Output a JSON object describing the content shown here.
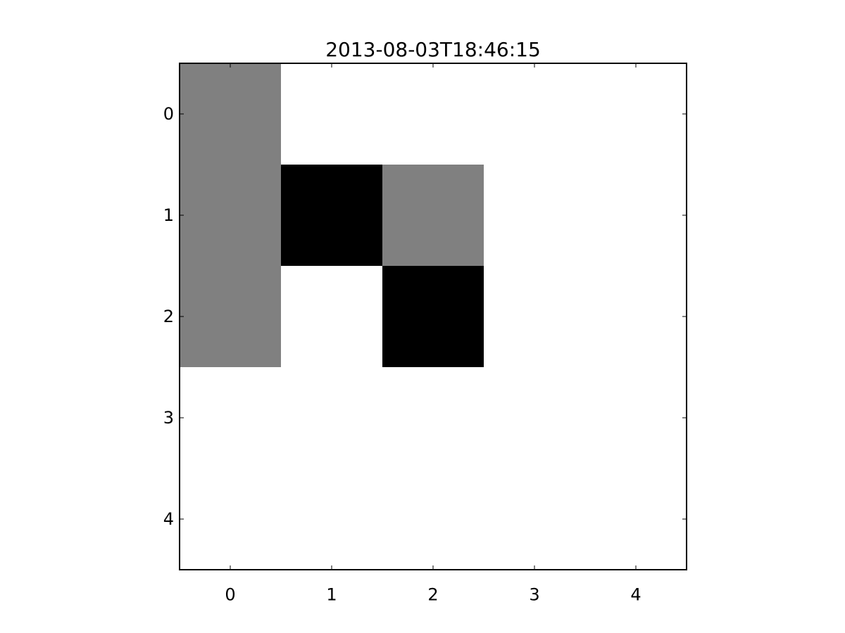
{
  "chart_data": {
    "type": "heatmap",
    "title": "2013-08-03T18:46:15",
    "xlabel": "",
    "ylabel": "",
    "x_ticks": [
      "0",
      "1",
      "2",
      "3",
      "4"
    ],
    "y_ticks": [
      "0",
      "1",
      "2",
      "3",
      "4"
    ],
    "xlim": [
      -0.5,
      4.5
    ],
    "ylim": [
      4.5,
      -0.5
    ],
    "y_axis_inverted": true,
    "colormap": "gray_r",
    "value_range": [
      0,
      1
    ],
    "grid": false,
    "values": [
      [
        0.5,
        0,
        0,
        0,
        0
      ],
      [
        0.5,
        1,
        0.5,
        0,
        0
      ],
      [
        0.5,
        0,
        1,
        0,
        0
      ],
      [
        0,
        0,
        0,
        0,
        0
      ],
      [
        0,
        0,
        0,
        0,
        0
      ]
    ]
  }
}
